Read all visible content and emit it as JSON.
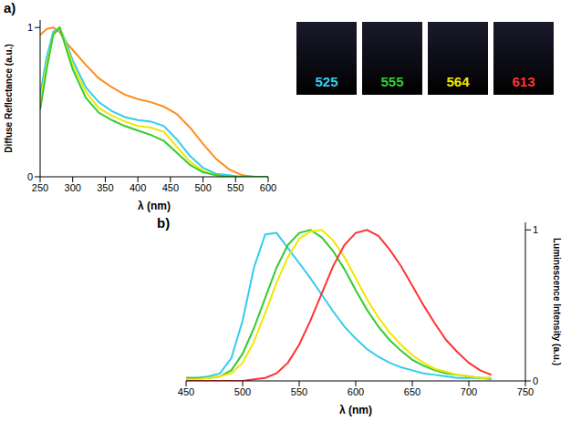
{
  "chart_data": [
    {
      "type": "line",
      "panel_label": "a)",
      "xlabel": "λ (nm)",
      "ylabel": "Diffuse Reflectance (a.u.)",
      "x": [
        250,
        260,
        270,
        280,
        290,
        300,
        320,
        340,
        360,
        380,
        400,
        420,
        440,
        460,
        480,
        500,
        520,
        540,
        560,
        580,
        600
      ],
      "xlim": [
        250,
        600
      ],
      "xticks": [
        250,
        300,
        350,
        400,
        450,
        500,
        550,
        600
      ],
      "ylim": [
        0,
        1.05
      ],
      "yticks": [
        0,
        1
      ],
      "grid": false,
      "series": [
        {
          "color": "#ff8c1a",
          "values": [
            0.95,
            0.99,
            1.0,
            0.97,
            0.9,
            0.85,
            0.75,
            0.66,
            0.6,
            0.55,
            0.52,
            0.5,
            0.47,
            0.42,
            0.33,
            0.22,
            0.12,
            0.05,
            0.01,
            0,
            0
          ]
        },
        {
          "color": "#33ccee",
          "values": [
            0.55,
            0.8,
            0.97,
            1.0,
            0.9,
            0.78,
            0.6,
            0.5,
            0.44,
            0.4,
            0.38,
            0.37,
            0.34,
            0.25,
            0.14,
            0.06,
            0.02,
            0.01,
            0,
            0,
            0
          ]
        },
        {
          "color": "#f2e600",
          "values": [
            0.5,
            0.75,
            0.95,
            1.0,
            0.88,
            0.75,
            0.57,
            0.46,
            0.41,
            0.37,
            0.34,
            0.33,
            0.3,
            0.2,
            0.1,
            0.04,
            0.01,
            0,
            0,
            0,
            0
          ]
        },
        {
          "color": "#33cc33",
          "values": [
            0.45,
            0.72,
            0.95,
            1.0,
            0.86,
            0.72,
            0.53,
            0.43,
            0.38,
            0.34,
            0.31,
            0.28,
            0.24,
            0.16,
            0.08,
            0.03,
            0.01,
            0,
            0,
            0,
            0
          ]
        }
      ]
    },
    {
      "type": "line",
      "panel_label": "b)",
      "xlabel": "λ (nm)",
      "ylabel": "Luminescence Intensity (a.u.)",
      "x": [
        450,
        460,
        470,
        480,
        490,
        500,
        510,
        520,
        530,
        540,
        550,
        560,
        570,
        580,
        590,
        600,
        610,
        620,
        630,
        640,
        650,
        660,
        670,
        680,
        690,
        700,
        710,
        720,
        730,
        740,
        750
      ],
      "xlim": [
        450,
        750
      ],
      "xticks": [
        450,
        500,
        550,
        600,
        650,
        700,
        750
      ],
      "ylim": [
        0,
        1.05
      ],
      "yticks": [
        0,
        1
      ],
      "grid": false,
      "series": [
        {
          "color": "#33ccee",
          "values": [
            0.02,
            0.02,
            0.03,
            0.05,
            0.15,
            0.4,
            0.75,
            0.97,
            0.98,
            0.88,
            0.78,
            0.68,
            0.57,
            0.46,
            0.36,
            0.28,
            0.21,
            0.16,
            0.12,
            0.09,
            0.07,
            0.05,
            0.04,
            0.03,
            0.02,
            0.02,
            0.02,
            0.01,
            null,
            null,
            null
          ]
        },
        {
          "color": "#33cc33",
          "values": [
            0.02,
            0.02,
            0.02,
            0.03,
            0.07,
            0.18,
            0.35,
            0.55,
            0.75,
            0.9,
            0.98,
            1.0,
            0.95,
            0.86,
            0.74,
            0.6,
            0.47,
            0.36,
            0.27,
            0.2,
            0.14,
            0.1,
            0.07,
            0.05,
            0.04,
            0.03,
            0.02,
            0.02,
            null,
            null,
            null
          ]
        },
        {
          "color": "#f2e600",
          "values": [
            0.01,
            0.01,
            0.02,
            0.03,
            0.05,
            0.12,
            0.26,
            0.45,
            0.65,
            0.82,
            0.94,
            0.99,
            1.0,
            0.93,
            0.82,
            0.68,
            0.54,
            0.42,
            0.32,
            0.24,
            0.17,
            0.12,
            0.08,
            0.06,
            0.04,
            0.03,
            0.02,
            0.02,
            null,
            null,
            null
          ]
        },
        {
          "color": "#ff3333",
          "values": [
            0,
            0,
            0,
            0,
            0,
            0,
            0.01,
            0.02,
            0.05,
            0.12,
            0.24,
            0.4,
            0.58,
            0.76,
            0.9,
            0.98,
            1.0,
            0.96,
            0.87,
            0.76,
            0.63,
            0.5,
            0.38,
            0.27,
            0.19,
            0.12,
            0.07,
            0.04,
            null,
            null,
            null
          ]
        }
      ]
    }
  ],
  "photos": [
    {
      "label": "525",
      "color": "#33ccee"
    },
    {
      "label": "555",
      "color": "#33cc33"
    },
    {
      "label": "564",
      "color": "#f2e600"
    },
    {
      "label": "613",
      "color": "#ff3333"
    }
  ]
}
